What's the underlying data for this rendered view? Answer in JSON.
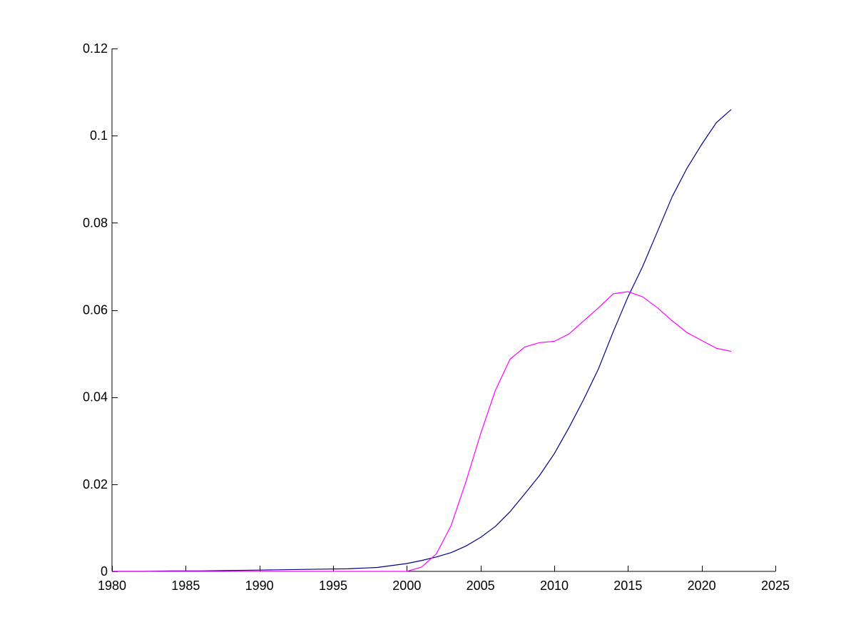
{
  "chart_data": {
    "type": "line",
    "title": "",
    "xlabel": "",
    "ylabel": "",
    "xlim": [
      1980,
      2025
    ],
    "ylim": [
      0,
      0.12
    ],
    "grid": false,
    "x_ticks": [
      1980,
      1985,
      1990,
      1995,
      2000,
      2005,
      2010,
      2015,
      2020,
      2025
    ],
    "x_tick_labels": [
      "1980",
      "1985",
      "1990",
      "1995",
      "2000",
      "2005",
      "2010",
      "2015",
      "2020",
      "2025"
    ],
    "y_ticks": [
      0,
      0.02,
      0.04,
      0.06,
      0.08,
      0.1,
      0.12
    ],
    "y_tick_labels": [
      "0",
      "0.02",
      "0.04",
      "0.06",
      "0.08",
      "0.1",
      "0.12"
    ],
    "series": [
      {
        "color": "#00008b",
        "x": [
          1980,
          1982,
          1984,
          1986,
          1988,
          1990,
          1992,
          1994,
          1996,
          1998,
          2000,
          2001,
          2002,
          2003,
          2004,
          2005,
          2006,
          2007,
          2008,
          2009,
          2010,
          2011,
          2012,
          2013,
          2014,
          2015,
          2016,
          2017,
          2018,
          2019,
          2020,
          2021,
          2022
        ],
        "y": [
          0.0,
          0.0,
          0.0001,
          0.0001,
          0.0002,
          0.0003,
          0.0004,
          0.0005,
          0.0006,
          0.0009,
          0.0018,
          0.0025,
          0.0033,
          0.0043,
          0.0058,
          0.0078,
          0.0103,
          0.0137,
          0.0178,
          0.022,
          0.027,
          0.033,
          0.0395,
          0.0465,
          0.055,
          0.063,
          0.07,
          0.078,
          0.086,
          0.0925,
          0.098,
          0.103,
          0.106
        ]
      },
      {
        "color": "#ff00ff",
        "x": [
          1980,
          1995,
          2000,
          2001,
          2002,
          2003,
          2004,
          2005,
          2006,
          2007,
          2008,
          2009,
          2010,
          2011,
          2012,
          2013,
          2014,
          2015,
          2016,
          2017,
          2018,
          2019,
          2020,
          2021,
          2022
        ],
        "y": [
          0.0,
          0.0,
          0.0,
          0.001,
          0.004,
          0.0105,
          0.0205,
          0.0315,
          0.0415,
          0.0487,
          0.0515,
          0.0525,
          0.0528,
          0.0545,
          0.0575,
          0.0605,
          0.0637,
          0.0642,
          0.063,
          0.0605,
          0.0575,
          0.0548,
          0.053,
          0.0512,
          0.0505
        ]
      }
    ]
  }
}
